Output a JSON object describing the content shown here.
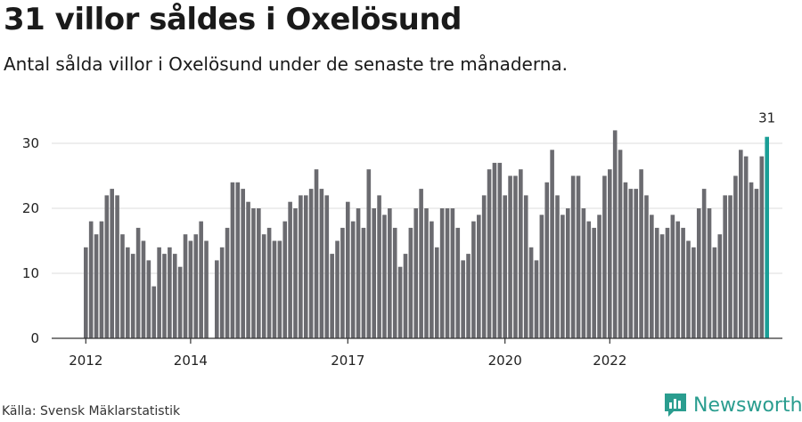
{
  "header": {
    "title": "31 villor såldes i Oxelösund",
    "subtitle": "Antal sålda villor i Oxelösund under de senaste tre månaderna."
  },
  "footer": {
    "source": "Källa: Svensk Mäklarstatistik",
    "brand": "Newsworthy"
  },
  "colors": {
    "bar": "#6b6b70",
    "highlight": "#1a9e96",
    "brand": "#2a9d8f"
  },
  "chart_data": {
    "type": "bar",
    "title": "31 villor såldes i Oxelösund",
    "subtitle": "Antal sålda villor i Oxelösund under de senaste tre månaderna.",
    "xlabel": "",
    "ylabel": "",
    "ylim": [
      0,
      32
    ],
    "yticks": [
      0,
      10,
      20,
      30
    ],
    "grid": true,
    "xtick_labels": [
      {
        "label": "2012",
        "index": 0
      },
      {
        "label": "2014",
        "index": 20
      },
      {
        "label": "2017",
        "index": 50
      },
      {
        "label": "2020",
        "index": 80
      },
      {
        "label": "2022",
        "index": 100
      }
    ],
    "highlight_label": "31",
    "values": [
      14,
      18,
      16,
      18,
      22,
      23,
      22,
      16,
      14,
      13,
      17,
      15,
      12,
      8,
      14,
      13,
      14,
      13,
      11,
      16,
      15,
      16,
      18,
      15,
      0,
      12,
      14,
      17,
      24,
      24,
      23,
      21,
      20,
      20,
      16,
      17,
      15,
      15,
      18,
      21,
      20,
      22,
      22,
      23,
      26,
      23,
      22,
      13,
      15,
      17,
      21,
      18,
      20,
      17,
      26,
      20,
      22,
      19,
      20,
      17,
      11,
      13,
      17,
      20,
      23,
      20,
      18,
      14,
      20,
      20,
      20,
      17,
      12,
      13,
      18,
      19,
      22,
      26,
      27,
      27,
      22,
      25,
      25,
      26,
      22,
      14,
      12,
      19,
      24,
      29,
      22,
      19,
      20,
      25,
      25,
      20,
      18,
      17,
      19,
      25,
      26,
      32,
      29,
      24,
      23,
      23,
      26,
      22,
      19,
      17,
      16,
      17,
      19,
      18,
      17,
      15,
      14,
      20,
      23,
      20,
      14,
      16,
      22,
      22,
      25,
      29,
      28,
      24,
      23,
      28,
      31
    ]
  }
}
